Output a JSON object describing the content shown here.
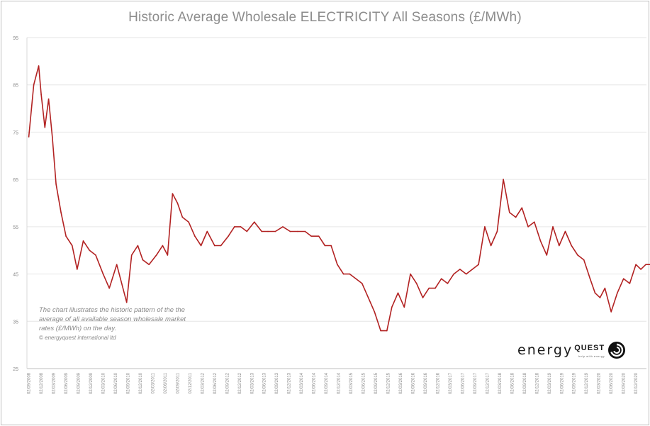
{
  "chart_data": {
    "type": "line",
    "title": "Historic Average Wholesale ELECTRICITY All Seasons (£/MWh)",
    "xlabel": "",
    "ylabel": "",
    "ylim": [
      25,
      95
    ],
    "yticks": [
      25,
      35,
      45,
      55,
      65,
      75,
      85,
      95
    ],
    "grid": true,
    "legend": "none",
    "line_color": "#b22222",
    "xticks": [
      "02/09/2008",
      "02/12/2008",
      "02/03/2009",
      "02/06/2009",
      "02/09/2009",
      "02/12/2009",
      "02/03/2010",
      "02/06/2010",
      "02/09/2010",
      "02/12/2010",
      "02/03/2011",
      "02/06/2011",
      "02/09/2011",
      "02/12/2011",
      "02/03/2012",
      "02/06/2012",
      "02/09/2012",
      "02/12/2012",
      "02/03/2013",
      "02/06/2013",
      "02/09/2013",
      "02/12/2013",
      "02/03/2014",
      "02/06/2014",
      "02/09/2014",
      "02/12/2014",
      "02/03/2015",
      "02/06/2015",
      "02/09/2015",
      "02/12/2015",
      "02/03/2016",
      "02/06/2016",
      "02/09/2016",
      "02/12/2016",
      "02/03/2017",
      "02/06/2017",
      "02/09/2017",
      "02/12/2017",
      "02/03/2018",
      "02/06/2018",
      "02/09/2018",
      "02/12/2018",
      "02/03/2019",
      "02/06/2019",
      "02/09/2019",
      "02/12/2019",
      "02/03/2020",
      "02/06/2020",
      "02/09/2020",
      "02/12/2020"
    ],
    "series": [
      {
        "x": [
          0,
          0.4,
          0.8,
          1.0,
          1.3,
          1.6,
          1.9,
          2.2,
          2.6,
          3.0,
          3.5,
          3.9,
          4.4,
          4.9,
          5.4,
          6.0,
          6.5,
          7.1,
          7.5,
          7.9,
          8.3,
          8.8,
          9.2,
          9.7,
          10.3,
          10.8,
          11.2,
          11.6,
          12.0,
          12.4,
          12.9,
          13.4,
          13.9,
          14.4,
          15.0,
          15.5,
          16.1,
          16.6,
          17.1,
          17.6,
          18.2,
          18.8,
          19.3,
          19.9,
          20.5,
          21.1,
          21.7,
          22.3,
          22.8,
          23.4,
          23.9,
          24.4,
          24.9,
          25.4,
          25.9,
          26.4,
          26.9,
          27.4,
          27.9,
          28.4,
          28.9,
          29.3,
          29.8,
          30.3,
          30.8,
          31.3,
          31.8,
          32.3,
          32.8,
          33.3,
          33.8,
          34.3,
          34.8,
          35.3,
          35.8,
          36.3,
          36.8,
          37.3,
          37.8,
          38.3,
          38.8,
          39.3,
          39.8,
          40.3,
          40.8,
          41.3,
          41.8,
          42.3,
          42.8,
          43.3,
          43.8,
          44.3,
          44.8,
          45.3,
          45.7,
          46.1,
          46.5,
          47.0,
          47.5,
          48.0,
          48.5,
          49.0,
          49.4,
          49.8,
          50.2,
          50.6,
          51.0,
          51.5
        ],
        "values": [
          74,
          85,
          89,
          83,
          76,
          82,
          74,
          64,
          58,
          53,
          51,
          46,
          52,
          50,
          49,
          45,
          42,
          47,
          43,
          39,
          49,
          51,
          48,
          47,
          49,
          51,
          49,
          62,
          60,
          57,
          56,
          53,
          51,
          54,
          51,
          51,
          53,
          55,
          55,
          54,
          56,
          54,
          54,
          54,
          55,
          54,
          54,
          54,
          53,
          53,
          51,
          51,
          47,
          45,
          45,
          44,
          43,
          40,
          37,
          33,
          33,
          38,
          41,
          38,
          45,
          43,
          40,
          42,
          42,
          44,
          43,
          45,
          46,
          45,
          46,
          47,
          55,
          51,
          54,
          65,
          58,
          57,
          59,
          55,
          56,
          52,
          49,
          55,
          51,
          54,
          51,
          49,
          48,
          44,
          41,
          40,
          42,
          37,
          41,
          44,
          43,
          47,
          46,
          47,
          47,
          45,
          46,
          44
        ]
      }
    ]
  },
  "annotation": {
    "text": "The chart illustrates the historic pattern of the the average of all available season wholesale market rates (£/MWh) on the day.",
    "copyright": "© energyquest international ltd"
  },
  "logo": {
    "word1": "energy",
    "word2": "QUEST",
    "tagline": "help with energy"
  }
}
